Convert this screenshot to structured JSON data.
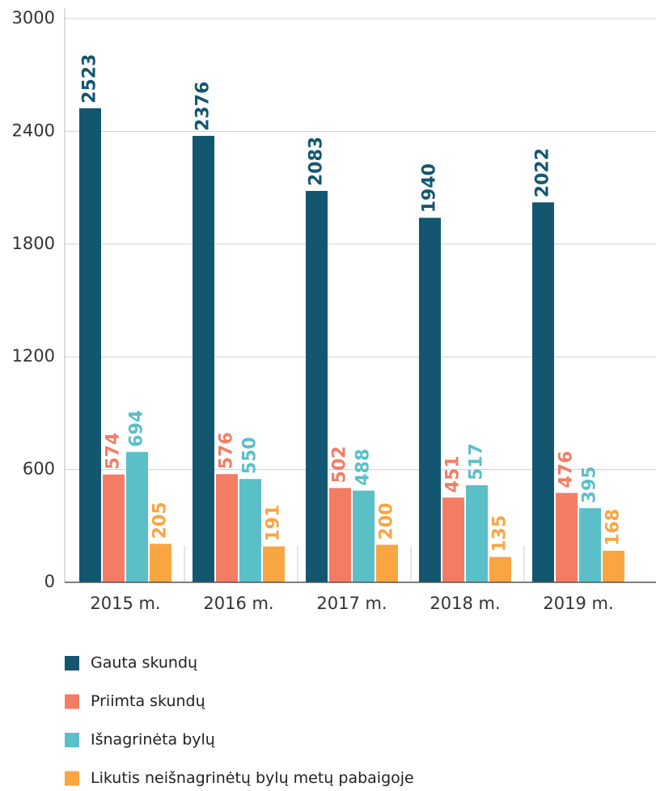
{
  "chart_data": {
    "type": "bar",
    "categories": [
      "2015 m.",
      "2016 m.",
      "2017 m.",
      "2018 m.",
      "2019 m."
    ],
    "series": [
      {
        "name": "Gauta skundų",
        "color": "#135670",
        "values": [
          2523,
          2376,
          2083,
          1940,
          2022
        ]
      },
      {
        "name": "Priimta skundų",
        "color": "#f47c64",
        "values": [
          574,
          576,
          502,
          451,
          476
        ]
      },
      {
        "name": "Išnagrinėta bylų",
        "color": "#5bbfc8",
        "values": [
          694,
          550,
          488,
          517,
          395
        ]
      },
      {
        "name": "Likutis neišnagrinėtų bylų metų pabaigoje",
        "color": "#f9a541",
        "values": [
          205,
          191,
          200,
          135,
          168
        ]
      }
    ],
    "ylim": [
      0,
      3000
    ],
    "yticks": [
      0,
      600,
      1200,
      1800,
      2400,
      3000
    ],
    "grid": true
  }
}
